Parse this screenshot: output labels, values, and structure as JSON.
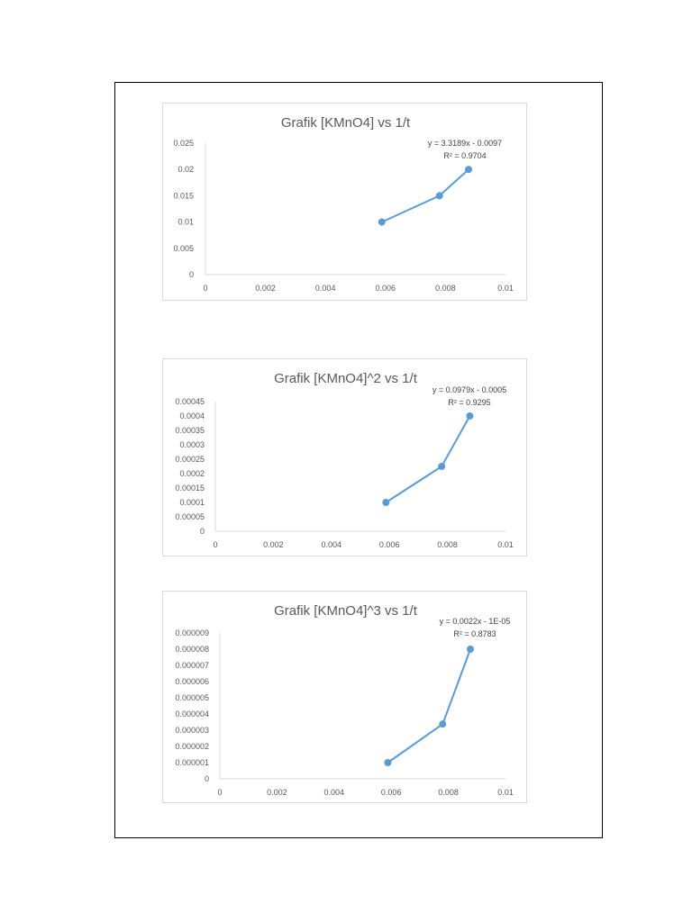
{
  "chart_data": [
    {
      "type": "scatter",
      "title": "Grafik [KMnO4] vs 1/t",
      "xlabel": "",
      "ylabel": "",
      "xlim": [
        0,
        0.01
      ],
      "ylim": [
        0,
        0.025
      ],
      "x_ticks": [
        "0",
        "0.002",
        "0.004",
        "0.006",
        "0.008",
        "0.01"
      ],
      "y_ticks": [
        "0",
        "0.005",
        "0.01",
        "0.015",
        "0.02",
        "0.025"
      ],
      "series": [
        {
          "x": [
            0.00588,
            0.0078,
            0.00877
          ],
          "y": [
            0.01,
            0.015,
            0.02
          ],
          "color": "#5b9bd5",
          "lines": true,
          "markers": true
        }
      ],
      "trendline_equation": "y = 3.3189x - 0.0097",
      "r_squared": "R² = 0.9704",
      "grid": false,
      "legend": "none"
    },
    {
      "type": "scatter",
      "title": "Grafik [KMnO4]^2 vs 1/t",
      "xlabel": "",
      "ylabel": "",
      "xlim": [
        0,
        0.01
      ],
      "ylim": [
        0,
        0.00045
      ],
      "x_ticks": [
        "0",
        "0.002",
        "0.004",
        "0.006",
        "0.008",
        "0.01"
      ],
      "y_ticks": [
        "0",
        "0.00005",
        "0.0001",
        "0.00015",
        "0.0002",
        "0.00025",
        "0.0003",
        "0.00035",
        "0.0004",
        "0.00045"
      ],
      "series": [
        {
          "x": [
            0.00588,
            0.0078,
            0.00877
          ],
          "y": [
            0.0001,
            0.000225,
            0.0004
          ],
          "color": "#5b9bd5",
          "lines": true,
          "markers": true
        }
      ],
      "trendline_equation": "y = 0.0979x - 0.0005",
      "r_squared": "R² = 0.9295",
      "grid": false,
      "legend": "none"
    },
    {
      "type": "scatter",
      "title": "Grafik [KMnO4]^3 vs 1/t",
      "xlabel": "",
      "ylabel": "",
      "xlim": [
        0,
        0.01
      ],
      "ylim": [
        0,
        9e-06
      ],
      "x_ticks": [
        "0",
        "0.002",
        "0.004",
        "0.006",
        "0.008",
        "0.01"
      ],
      "y_ticks": [
        "0",
        "0.000001",
        "0.000002",
        "0.000003",
        "0.000004",
        "0.000005",
        "0.000006",
        "0.000007",
        "0.000008",
        "0.000009"
      ],
      "series": [
        {
          "x": [
            0.00588,
            0.0078,
            0.00877
          ],
          "y": [
            1e-06,
            3.38e-06,
            8e-06
          ],
          "color": "#5b9bd5",
          "lines": true,
          "markers": true
        }
      ],
      "trendline_equation": "y = 0.0022x - 1E-05",
      "r_squared": "R² = 0.8783",
      "grid": false,
      "legend": "none"
    }
  ],
  "colors": {
    "axis": "#d9d9d9",
    "text": "#595959",
    "frame": "#000000"
  }
}
